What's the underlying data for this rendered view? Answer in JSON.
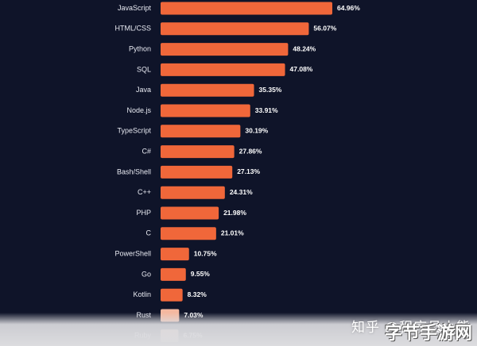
{
  "chart_data": {
    "type": "bar",
    "orientation": "horizontal",
    "categories": [
      "JavaScript",
      "HTML/CSS",
      "Python",
      "SQL",
      "Java",
      "Node.js",
      "TypeScript",
      "C#",
      "Bash/Shell",
      "C++",
      "PHP",
      "C",
      "PowerShell",
      "Go",
      "Kotlin",
      "Rust",
      "Ruby"
    ],
    "values": [
      64.96,
      56.07,
      48.24,
      47.08,
      35.35,
      33.91,
      30.19,
      27.86,
      27.13,
      24.31,
      21.98,
      21.01,
      10.75,
      9.55,
      8.32,
      7.03,
      6.75
    ],
    "value_labels": [
      "64.96%",
      "56.07%",
      "48.24%",
      "47.08%",
      "35.35%",
      "33.91%",
      "30.19%",
      "27.86%",
      "27.13%",
      "24.31%",
      "21.98%",
      "21.01%",
      "10.75%",
      "9.55%",
      "8.32%",
      "7.03%",
      "6.75%"
    ],
    "bar_color": "#f0673a",
    "faded_bar_color": "#f4b8a0",
    "xlim": [
      0,
      70
    ]
  },
  "watermark": {
    "text": "知乎 @程序员小熊",
    "corner_text": "字节手游网"
  }
}
